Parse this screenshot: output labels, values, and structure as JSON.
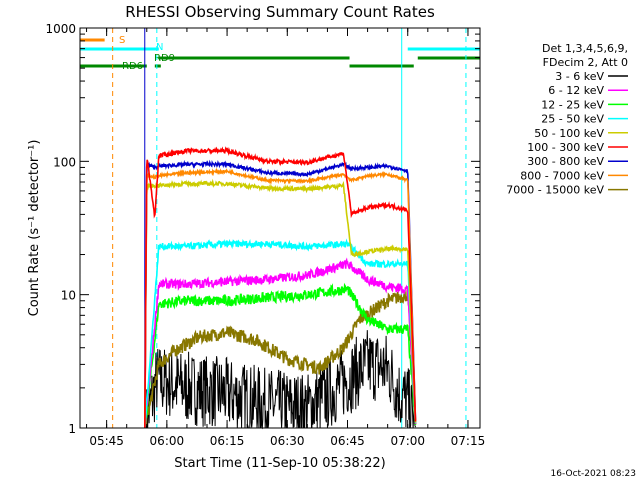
{
  "chart_data": {
    "type": "line",
    "title": "RHESSI Observing Summary Count Rates",
    "xlabel": "Start Time (11-Sep-10 05:38:22)",
    "ylabel": "Count Rate (s⁻¹ detector⁻¹)",
    "y_scale": "log",
    "xlim": [
      "05:38:22",
      "07:18:00"
    ],
    "ylim": [
      1,
      1000
    ],
    "x_ticks": [
      "05:45",
      "06:00",
      "06:15",
      "06:30",
      "06:45",
      "07:00",
      "07:15"
    ],
    "y_ticks": [
      "1",
      "10",
      "100",
      "1000"
    ],
    "legend_header": [
      "Det 1,3,4,5,6,9,",
      "FDecim 2, Att 0"
    ],
    "legend_placement": "right",
    "series": [
      {
        "name": "3 - 6 keV",
        "color": "#000000",
        "x": [
          "05:54:30",
          "05:57:30",
          "06:05",
          "06:15",
          "06:25",
          "06:35",
          "06:45",
          "06:50",
          "06:55",
          "06:58",
          "07:00",
          "07:02"
        ],
        "values": [
          1.0,
          2.3,
          2.0,
          1.8,
          1.5,
          1.4,
          2.3,
          3.0,
          2.8,
          1.8,
          1.6,
          1.0
        ]
      },
      {
        "name": "6 - 12 keV",
        "color": "#ff00ff",
        "x": [
          "05:54:30",
          "05:58",
          "06:05",
          "06:15",
          "06:25",
          "06:35",
          "06:45",
          "06:50",
          "06:55",
          "07:00",
          "07:02"
        ],
        "values": [
          1.0,
          12.0,
          12.0,
          12.5,
          13.0,
          14.0,
          17.0,
          13.0,
          11.5,
          11.0,
          1.0
        ]
      },
      {
        "name": "12 - 25 keV",
        "color": "#00ff00",
        "x": [
          "05:54:30",
          "05:58",
          "06:05",
          "06:15",
          "06:25",
          "06:35",
          "06:45",
          "06:50",
          "06:55",
          "07:00",
          "07:02"
        ],
        "values": [
          1.0,
          8.5,
          9.0,
          9.0,
          9.5,
          10.0,
          11.0,
          6.5,
          5.5,
          5.5,
          1.0
        ]
      },
      {
        "name": "25 - 50 keV",
        "color": "#00ffff",
        "x": [
          "05:54:30",
          "05:58",
          "06:05",
          "06:15",
          "06:25",
          "06:35",
          "06:45",
          "06:50",
          "06:55",
          "07:00",
          "07:02"
        ],
        "values": [
          1.0,
          23.0,
          23.0,
          24.0,
          24.0,
          23.0,
          24.0,
          17.0,
          17.0,
          17.0,
          1.0
        ]
      },
      {
        "name": "50 - 100 keV",
        "color": "#cccc00",
        "x": [
          "05:54:30",
          "05:55",
          "05:58",
          "06:05",
          "06:15",
          "06:25",
          "06:35",
          "06:44",
          "06:46",
          "06:50",
          "06:55",
          "07:00",
          "07:02"
        ],
        "values": [
          1.0,
          65.0,
          66.0,
          68.0,
          68.0,
          63.0,
          62.0,
          66.0,
          20.0,
          21.0,
          22.0,
          22.0,
          1.0
        ]
      },
      {
        "name": "100 - 300 keV",
        "color": "#ff0000",
        "x": [
          "05:54:30",
          "05:55",
          "05:57",
          "05:58",
          "06:05",
          "06:15",
          "06:25",
          "06:35",
          "06:44",
          "06:46",
          "06:50",
          "06:55",
          "07:00",
          "07:02"
        ],
        "values": [
          1.0,
          110.0,
          38.0,
          110.0,
          120.0,
          120.0,
          100.0,
          98.0,
          115.0,
          40.0,
          45.0,
          47.0,
          43.0,
          1.0
        ]
      },
      {
        "name": "300 - 800 keV",
        "color": "#0000cc",
        "x": [
          "05:54:30",
          "05:55",
          "05:57",
          "05:58",
          "06:05",
          "06:15",
          "06:25",
          "06:35",
          "06:44",
          "06:46",
          "06:50",
          "06:55",
          "07:00",
          "07:02"
        ],
        "values": [
          1.0,
          95.0,
          90.0,
          92.0,
          95.0,
          95.0,
          82.0,
          80.0,
          95.0,
          88.0,
          90.0,
          92.0,
          85.0,
          1.0
        ]
      },
      {
        "name": "800 - 7000 keV",
        "color": "#ff8800",
        "x": [
          "05:54:30",
          "05:55",
          "05:57",
          "05:58",
          "06:05",
          "06:15",
          "06:25",
          "06:35",
          "06:44",
          "06:46",
          "06:50",
          "06:55",
          "07:00",
          "07:02"
        ],
        "values": [
          1.0,
          78.0,
          76.0,
          78.0,
          82.0,
          84.0,
          72.0,
          71.0,
          80.0,
          72.0,
          78.0,
          80.0,
          72.0,
          1.0
        ]
      },
      {
        "name": "7000 - 15000 keV",
        "color": "#887700",
        "x": [
          "05:54:30",
          "05:58",
          "06:02",
          "06:08",
          "06:15",
          "06:22",
          "06:30",
          "06:38",
          "06:44",
          "06:48",
          "06:55",
          "07:00",
          "07:02"
        ],
        "values": [
          1.0,
          3.0,
          3.8,
          4.8,
          5.2,
          4.6,
          3.3,
          2.8,
          4.0,
          6.5,
          9.0,
          10.0,
          1.0
        ]
      }
    ],
    "flag_bars": [
      {
        "label": "S",
        "color": "#ff8800",
        "segments": [
          [
            "05:38:22",
            "05:44:30"
          ]
        ]
      },
      {
        "label": "N",
        "color": "#00ffff",
        "segments": [
          [
            "05:38:22",
            "05:58:00"
          ],
          [
            "07:00:00",
            "07:18:00"
          ]
        ]
      },
      {
        "label": "RD9",
        "color": "#008800",
        "segments": [
          [
            "05:58:00",
            "06:45:30"
          ],
          [
            "07:02:30",
            "07:18:00"
          ]
        ]
      },
      {
        "label": "RD6",
        "color": "#008800",
        "segments": [
          [
            "05:38:22",
            "05:55:00"
          ],
          [
            "05:57:00",
            "05:58:30"
          ],
          [
            "06:45:30",
            "07:01:30"
          ]
        ]
      }
    ],
    "vertical_markers": [
      {
        "time": "05:46:30",
        "color": "#ff8800",
        "style": "dashed"
      },
      {
        "time": "05:54:30",
        "color": "#0000cc",
        "style": "solid"
      },
      {
        "time": "05:57:30",
        "color": "#00ffff",
        "style": "dashed"
      },
      {
        "time": "06:58:30",
        "color": "#00ffff",
        "style": "solid"
      },
      {
        "time": "07:14:30",
        "color": "#00ffff",
        "style": "dashed"
      }
    ],
    "footer_date": "16-Oct-2021 08:23"
  }
}
